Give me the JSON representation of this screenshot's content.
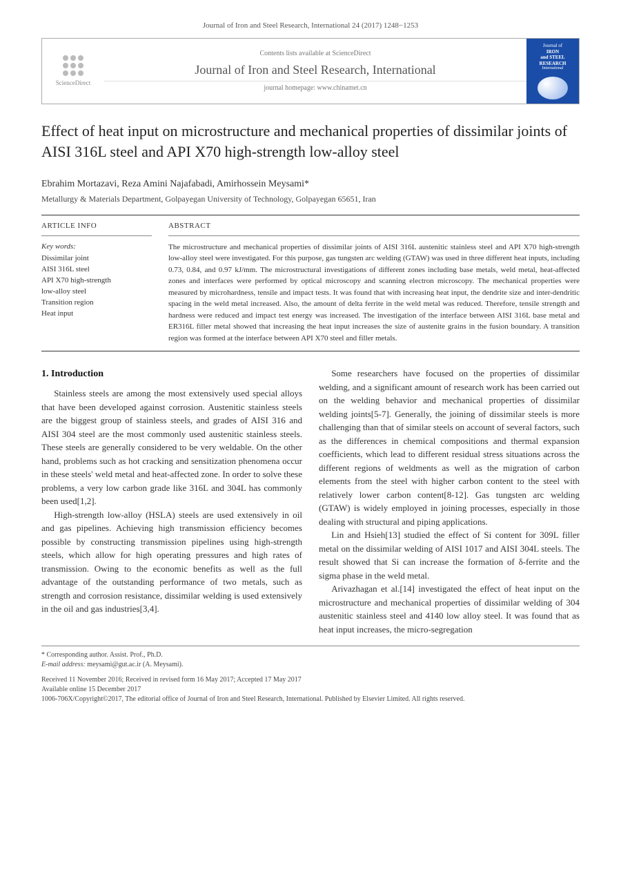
{
  "running_head": "Journal of Iron and Steel Research, International 24 (2017) 1248−1253",
  "header": {
    "logo_label": "ScienceDirect",
    "contents_line": "Contents lists available at ScienceDirect",
    "journal_title": "Journal of Iron and Steel Research, International",
    "homepage": "journal homepage: www.chinamet.cn",
    "cover": {
      "line1": "Journal of",
      "line2": "IRON",
      "line3": "and STEEL",
      "line4": "RESEARCH",
      "line5": "International"
    }
  },
  "title": "Effect of heat input on microstructure and mechanical properties of dissimilar joints of AISI 316L steel and API X70 high-strength low-alloy steel",
  "authors": "Ebrahim Mortazavi,    Reza Amini Najafabadi,    Amirhossein Meysami*",
  "affiliation": "Metallurgy & Materials Department, Golpayegan University of Technology, Golpayegan 65651, Iran",
  "info": {
    "heading": "ARTICLE INFO",
    "kw_label": "Key words:",
    "keywords": [
      "Dissimilar joint",
      "AISI 316L steel",
      "API X70 high-strength",
      "low-alloy steel",
      "Transition region",
      "Heat input"
    ]
  },
  "abstract": {
    "heading": "ABSTRACT",
    "text": "The microstructure and mechanical properties of dissimilar joints of AISI 316L austenitic stainless steel and API X70 high-strength low-alloy steel were investigated. For this purpose, gas tungsten arc welding (GTAW) was used in three different heat inputs, including 0.73, 0.84, and 0.97 kJ/mm. The microstructural investigations of different zones including base metals, weld metal, heat-affected zones and interfaces were performed by optical microscopy and scanning electron microscopy. The mechanical properties were measured by microhardness, tensile and impact tests. It was found that with increasing heat input, the dendrite size and inter-dendritic spacing in the weld metal increased. Also, the amount of delta ferrite in the weld metal was reduced. Therefore, tensile strength and hardness were reduced and impact test energy was increased. The investigation of the interface between AISI 316L base metal and ER316L filler metal showed that increasing the heat input increases the size of austenite grains in the fusion boundary. A transition region was formed at the interface between API X70 steel and filler metals."
  },
  "body": {
    "section_heading": "1. Introduction",
    "p1": "Stainless steels are among the most extensively used special alloys that have been developed against corrosion. Austenitic stainless steels are the biggest group of stainless steels, and grades of AISI 316 and AISI 304 steel are the most commonly used austenitic stainless steels. These steels are generally considered to be very weldable. On the other hand, problems such as hot cracking and sensitization phenomena occur in these steels' weld metal and heat-affected zone. In order to solve these problems, a very low carbon grade like 316L and 304L has commonly been used[1,2].",
    "p2": "High-strength low-alloy (HSLA) steels are used extensively in oil and gas pipelines. Achieving high transmission efficiency becomes possible by constructing transmission pipelines using high-strength steels, which allow for high operating pressures and high rates of transmission. Owing to the economic benefits as well as the full advantage of the outstanding performance of two metals, such as strength and corrosion resistance, dissimilar welding is used extensively in the oil and gas industries[3,4].",
    "p3a": "Some researchers have focused on the properties",
    "p3b": "of dissimilar welding, and a significant amount of research work has been carried out on the welding behavior and mechanical properties of dissimilar welding joints[5-7]. Generally, the joining of dissimilar steels is more challenging than that of similar steels on account of several factors, such as the differences in chemical compositions and thermal expansion coefficients, which lead to different residual stress situations across the different regions of weldments as well as the migration of carbon elements from the steel with higher carbon content to the steel with relatively lower carbon content[8-12]. Gas tungsten arc welding (GTAW) is widely employed in joining processes, especially in those dealing with structural and piping applications.",
    "p4": "Lin and Hsieh[13] studied the effect of Si content for 309L filler metal on the dissimilar welding of AISI 1017 and AISI 304L steels. The result showed that Si can increase the formation of δ-ferrite and the sigma phase in the weld metal.",
    "p5": "Arivazhagan et al.[14] investigated the effect of heat input on the microstructure and mechanical properties of dissimilar welding of 304 austenitic stainless steel and 4140 low alloy steel. It was found that as heat input increases, the micro-segregation"
  },
  "footer": {
    "corr": "* Corresponding author. Assist. Prof., Ph.D.",
    "email_label": "E-mail address:",
    "email": "meysami@gut.ac.ir (A. Meysami).",
    "dates": "Received 11 November 2016; Received in revised form 16 May 2017; Accepted 17 May 2017",
    "online": "Available online 15 December 2017",
    "copyright": "1006-706X/Copyright©2017, The editorial office of Journal of Iron and Steel Research, International. Published by Elsevier Limited. All rights reserved."
  },
  "colors": {
    "text": "#333333",
    "border": "#888888",
    "cover_bg": "#1a4da8"
  },
  "typography": {
    "title_fontsize": 22,
    "body_fontsize": 13,
    "abstract_fontsize": 11,
    "footer_fontsize": 10
  }
}
